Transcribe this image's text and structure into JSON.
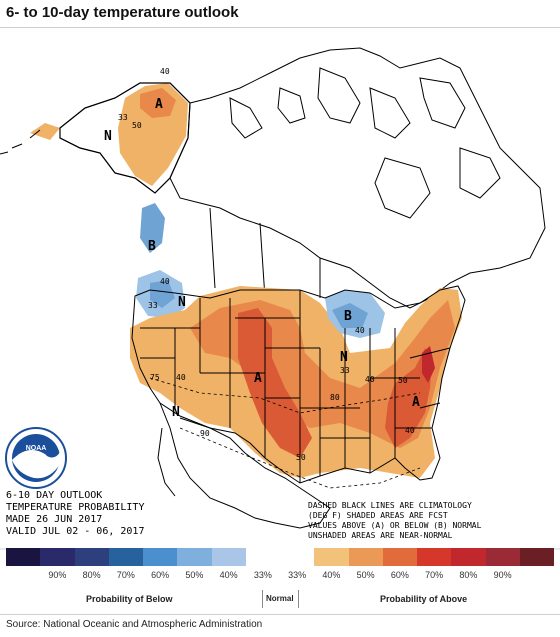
{
  "header": {
    "title": "6- to 10-day temperature outlook"
  },
  "map": {
    "outlook_title_lines": [
      "6-10 DAY OUTLOOK",
      "TEMPERATURE PROBABILITY",
      "MADE  26 JUN 2017",
      "VALID  JUL 02 - 06, 2017"
    ],
    "notes_lines": [
      "DASHED BLACK LINES ARE CLIMATOLOGY",
      "(DEG F) SHADED AREAS ARE FCST",
      "VALUES ABOVE (A) OR BELOW (B) NORMAL",
      "UNSHADED AREAS ARE NEAR-NORMAL"
    ],
    "region_letters": {
      "alaska_above": "A",
      "alaska_normal": "N",
      "pacific_nw_below": "B",
      "nw_normal": "N",
      "great_lakes_below": "B",
      "midwest_normal": "N",
      "plains_above": "A",
      "southeast_above": "A",
      "sw_normal": "N"
    },
    "contour_labels": {
      "ak_40": "40",
      "ak_33": "33",
      "ak_50": "50",
      "pnw_40": "40",
      "nw_33": "33",
      "gl_40": "40",
      "mw_33": "33",
      "c_40": "40",
      "c_50": "50",
      "sw_75": "75",
      "sw_40": "40",
      "se_50": "50",
      "se_40": "40",
      "clim_80": "80",
      "clim_90": "90"
    },
    "colors": {
      "above_40": "#f0b266",
      "above_50": "#e8884a",
      "above_60": "#d95a35",
      "below_40": "#9dc3e6",
      "below_50": "#6fa3d4",
      "outline": "#000000",
      "noaa_blue": "#1b4f9c"
    }
  },
  "legend": {
    "swatches": [
      "#1a1440",
      "#2a2a6a",
      "#2e3f7e",
      "#27629e",
      "#4c8fcf",
      "#7fb0dd",
      "#a9c6e8",
      "#ffffff",
      "#ffffff",
      "#f2c27a",
      "#eb9956",
      "#e26b3c",
      "#d5382b",
      "#c0282e",
      "#9a2a35",
      "#6a1f24"
    ],
    "tick_labels": [
      "90%",
      "80%",
      "70%",
      "60%",
      "50%",
      "40%",
      "33%",
      "33%",
      "40%",
      "50%",
      "60%",
      "70%",
      "80%",
      "90%"
    ],
    "below_label": "Probability of Below",
    "normal_label": "Normal",
    "above_label": "Probability of Above"
  },
  "footer": {
    "source": "Source: National Oceanic and Atmospheric Administration"
  }
}
